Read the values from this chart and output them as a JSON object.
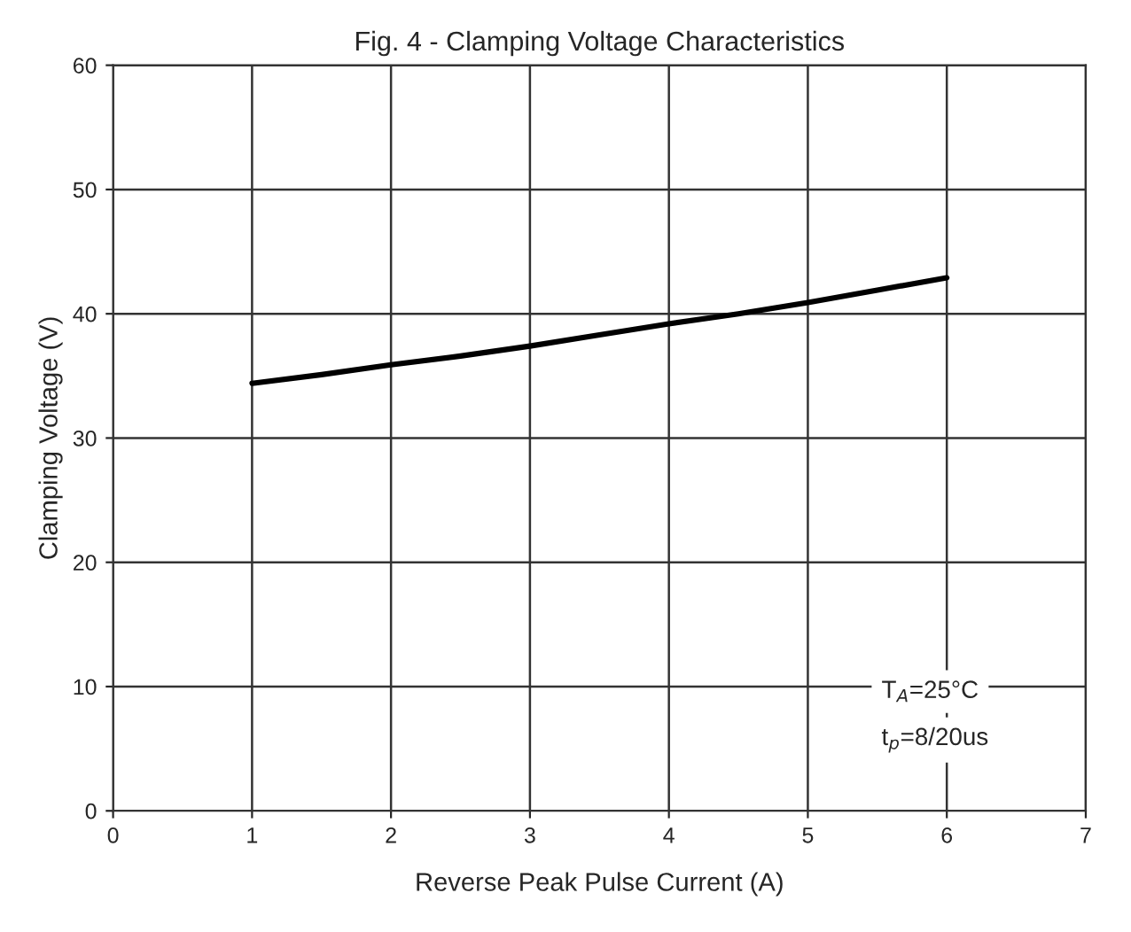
{
  "chart_data": {
    "type": "line",
    "title": "Fig. 4 - Clamping Voltage Characteristics",
    "xlabel": "Reverse Peak Pulse Current (A)",
    "ylabel": "Clamping Voltage (V)",
    "x": [
      1,
      1.5,
      2,
      2.5,
      3,
      3.5,
      4,
      4.5,
      5,
      5.5,
      6
    ],
    "series": [
      {
        "color": "#000000",
        "values": [
          34.4,
          35.1,
          35.9,
          36.6,
          37.4,
          38.3,
          39.2,
          40.0,
          40.9,
          41.9,
          42.9
        ]
      }
    ],
    "xlim": [
      0,
      7
    ],
    "ylim": [
      0,
      60
    ],
    "xticks": [
      0,
      1,
      2,
      3,
      4,
      5,
      6,
      7
    ],
    "yticks": [
      0,
      10,
      20,
      30,
      40,
      50,
      60
    ],
    "grid": true,
    "marker": "none",
    "line_style": "solid",
    "annotations": [
      "T$_{A}$=25°C",
      "t$_{p}$=8/20us"
    ]
  }
}
